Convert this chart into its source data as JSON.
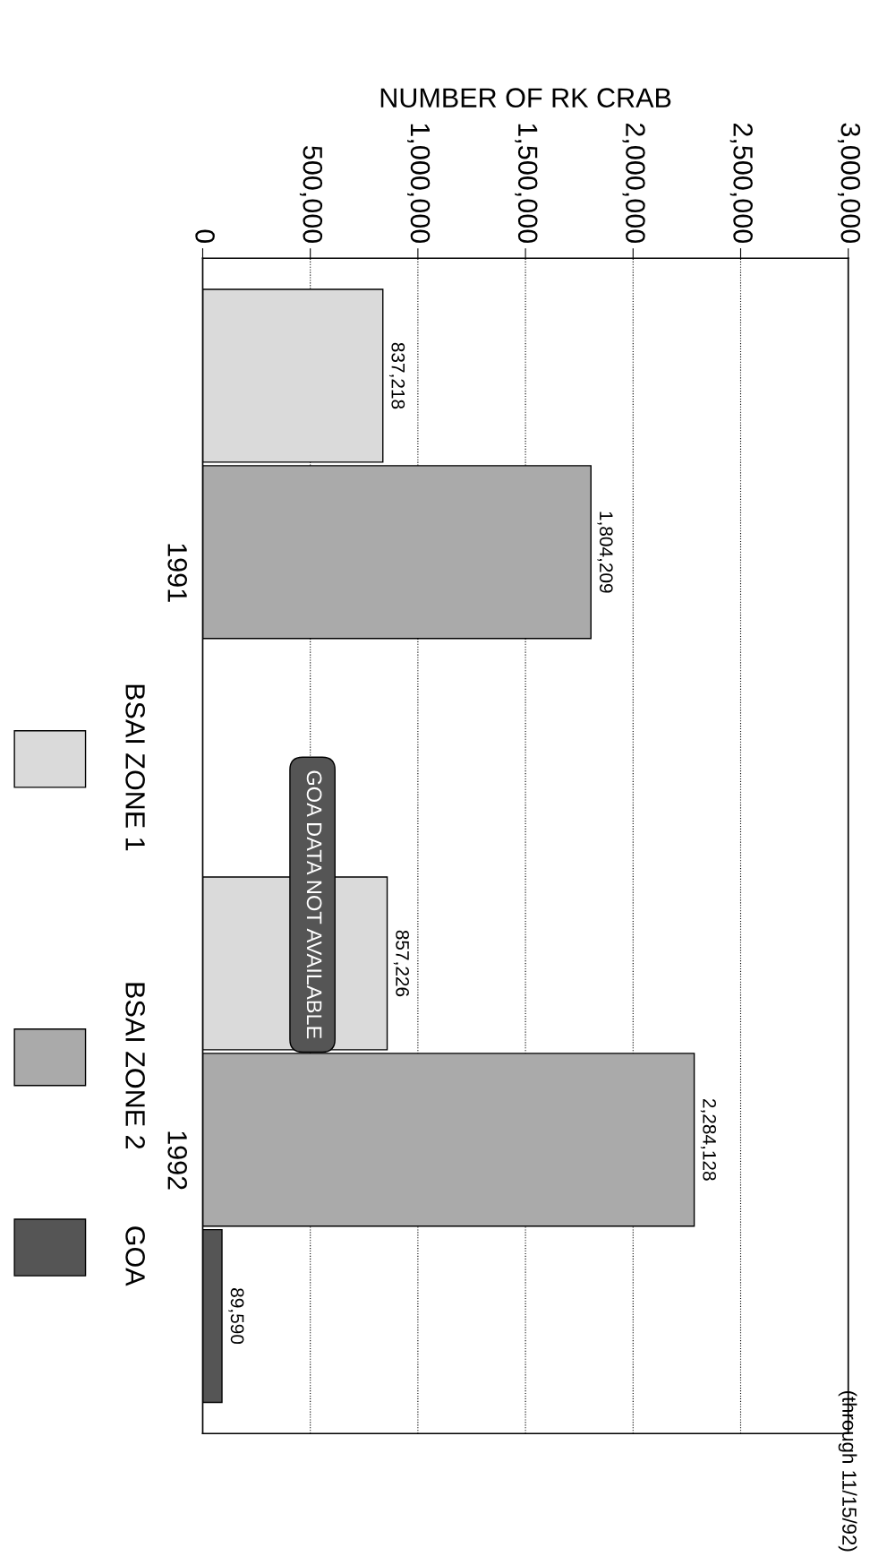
{
  "chart_data": {
    "type": "bar",
    "orientation": "horizontal",
    "xlabel": "NUMBER OF RK CRAB",
    "categories": [
      "1991",
      "1992"
    ],
    "series": [
      {
        "name": "BSAI ZONE 1",
        "color": "#dadada",
        "values": [
          837218,
          857226
        ],
        "value_labels": [
          "837,218",
          "857,226"
        ]
      },
      {
        "name": "BSAI ZONE 2",
        "color": "#aaaaaa",
        "values": [
          1804209,
          2284128
        ],
        "value_labels": [
          "1,804,209",
          "2,284,128"
        ]
      },
      {
        "name": "GOA",
        "color": "#555555",
        "values": [
          null,
          89590
        ],
        "value_labels": [
          null,
          "89,590"
        ]
      }
    ],
    "xlim": [
      0,
      3000000
    ],
    "xticks": [
      0,
      {
        "value": 500000,
        "label": "500,000"
      },
      {
        "value": 1000000,
        "label": "1,000,000"
      },
      {
        "value": 1500000,
        "label": "1,500,000"
      },
      {
        "value": 2000000,
        "label": "2,000,000"
      },
      {
        "value": 2500000,
        "label": "2,500,000"
      },
      {
        "value": 3000000,
        "label": "3,000,000"
      }
    ],
    "grid": "x",
    "legend": "left",
    "annotations": [
      "GOA DATA NOT AVAILABLE",
      "(through 11/15/92)"
    ]
  }
}
